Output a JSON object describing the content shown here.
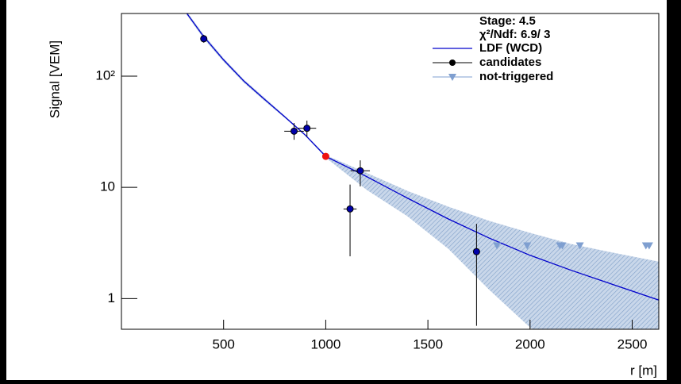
{
  "chart_data": {
    "type": "scatter",
    "y_label": "Signal [VEM]",
    "x_label": "r [m]",
    "legend_texts": [
      "Stage: 4.5",
      "χ²/Ndf: 6.9/ 3"
    ],
    "xlim": [
      0,
      2630
    ],
    "xticks": [
      500,
      1000,
      1500,
      2000,
      2500
    ],
    "ylim": [
      0.53,
      366
    ],
    "yticks": [
      1,
      10,
      {
        "value": 100,
        "label": "10²"
      }
    ],
    "log_y": true,
    "series": [
      {
        "name": "LDF (WCD)",
        "type": "line",
        "color": "#0000cc",
        "band_color": "#a9c0dc",
        "x": [
          320,
          400,
          500,
          600,
          700,
          800,
          900,
          1000,
          1200,
          1400,
          1600,
          1800,
          2000,
          2200,
          2400,
          2630
        ],
        "values": [
          367,
          230,
          140,
          90,
          62,
          43,
          29.5,
          19,
          12.5,
          8,
          5.2,
          3.5,
          2.45,
          1.8,
          1.35,
          0.97
        ],
        "band_high": [
          380,
          240,
          145,
          93,
          64,
          44,
          30,
          19.5,
          13.5,
          9.3,
          6.7,
          5.0,
          3.9,
          3.1,
          2.6,
          2.15
        ],
        "band_low": [
          355,
          220,
          135,
          87,
          60,
          42,
          29,
          18.5,
          9.5,
          5.5,
          2.8,
          1.2,
          0.55,
          0.3,
          0.2,
          0.15
        ]
      },
      {
        "name": "candidates",
        "type": "errorbar",
        "color": "#0000aa",
        "x": [
          403,
          845,
          908,
          1119,
          1169,
          1738
        ],
        "values": [
          217,
          32,
          34,
          6.4,
          14.1,
          2.64
        ],
        "xerr": [
          5,
          48,
          45,
          32,
          47,
          0
        ],
        "yerr_high": [
          18,
          5.9,
          5.8,
          4.2,
          3.4,
          2.06
        ],
        "yerr_low": [
          17,
          5.2,
          5.4,
          4.0,
          3.9,
          2.07
        ]
      },
      {
        "name": "not-triggered",
        "type": "triangle",
        "color": "#7f9fd0",
        "x": [
          1838,
          1986,
          2146,
          2158,
          2244,
          2567,
          2583
        ],
        "values": [
          3,
          3,
          3,
          3,
          3,
          3,
          3
        ]
      }
    ],
    "reference_point": {
      "x": 1000,
      "value": 19,
      "color": "#ee1111"
    }
  }
}
